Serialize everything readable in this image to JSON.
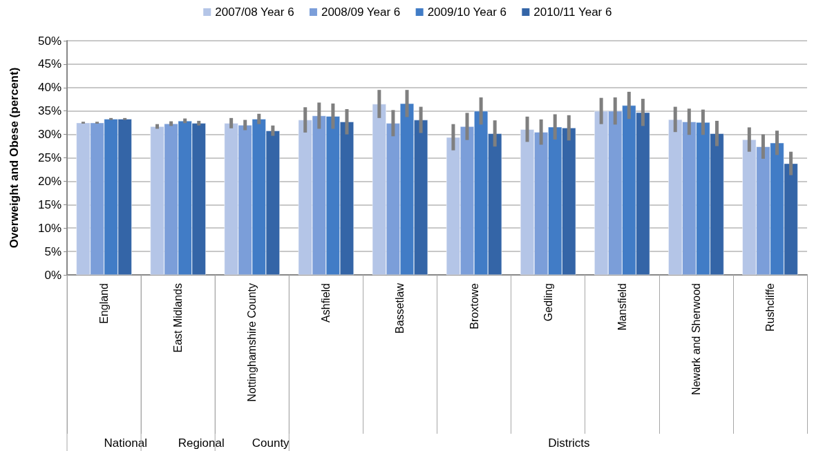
{
  "chart_data": {
    "type": "bar",
    "ylabel": "Overweight and Obese (percent)",
    "categories": [
      "England",
      "East Midlands",
      "Nottinghamshire County",
      "Ashfield",
      "Bassetlaw",
      "Broxtowe",
      "Gedling",
      "Mansfield",
      "Newark and Sherwood",
      "Rushcliffe"
    ],
    "series": [
      {
        "name": "2007/08 Year 6",
        "color": "#b4c5e7",
        "values": [
          32.5,
          31.7,
          32.4,
          33.1,
          36.5,
          29.4,
          31.1,
          35.0,
          33.2,
          28.9
        ],
        "errors": [
          0.2,
          0.5,
          1.1,
          2.7,
          3.0,
          2.8,
          2.7,
          2.8,
          2.7,
          2.6
        ]
      },
      {
        "name": "2008/09 Year 6",
        "color": "#7b9ed9",
        "values": [
          32.5,
          32.3,
          32.0,
          34.0,
          32.4,
          31.7,
          30.5,
          35.0,
          32.7,
          27.4
        ],
        "errors": [
          0.2,
          0.5,
          1.1,
          2.8,
          2.8,
          2.9,
          2.7,
          2.9,
          2.8,
          2.6
        ]
      },
      {
        "name": "2009/10 Year 6",
        "color": "#417cc6",
        "values": [
          33.3,
          32.9,
          33.3,
          33.9,
          36.6,
          35.0,
          31.6,
          36.2,
          32.6,
          28.2
        ],
        "errors": [
          0.2,
          0.5,
          1.1,
          2.7,
          2.9,
          2.9,
          2.7,
          2.9,
          2.7,
          2.6
        ]
      },
      {
        "name": "2010/11 Year 6",
        "color": "#3465a7",
        "values": [
          33.3,
          32.4,
          30.8,
          32.7,
          33.1,
          30.2,
          31.4,
          34.7,
          30.2,
          23.8
        ],
        "errors": [
          0.2,
          0.5,
          1.1,
          2.7,
          2.8,
          2.8,
          2.7,
          2.9,
          2.7,
          2.5
        ]
      }
    ],
    "ylim": [
      0,
      50
    ],
    "yticks": [
      {
        "value": 0,
        "label": "0%"
      },
      {
        "value": 5,
        "label": "5%"
      },
      {
        "value": 10,
        "label": "10%"
      },
      {
        "value": 15,
        "label": "15%"
      },
      {
        "value": 20,
        "label": "20%"
      },
      {
        "value": 25,
        "label": "25%"
      },
      {
        "value": 30,
        "label": "30%"
      },
      {
        "value": 35,
        "label": "35%"
      },
      {
        "value": 40,
        "label": "40%"
      },
      {
        "value": 45,
        "label": "45%"
      },
      {
        "value": 50,
        "label": "50%"
      }
    ],
    "grid": "y",
    "legend": "top",
    "annotations": [
      "National",
      "Regional",
      "County",
      "Districts"
    ]
  }
}
